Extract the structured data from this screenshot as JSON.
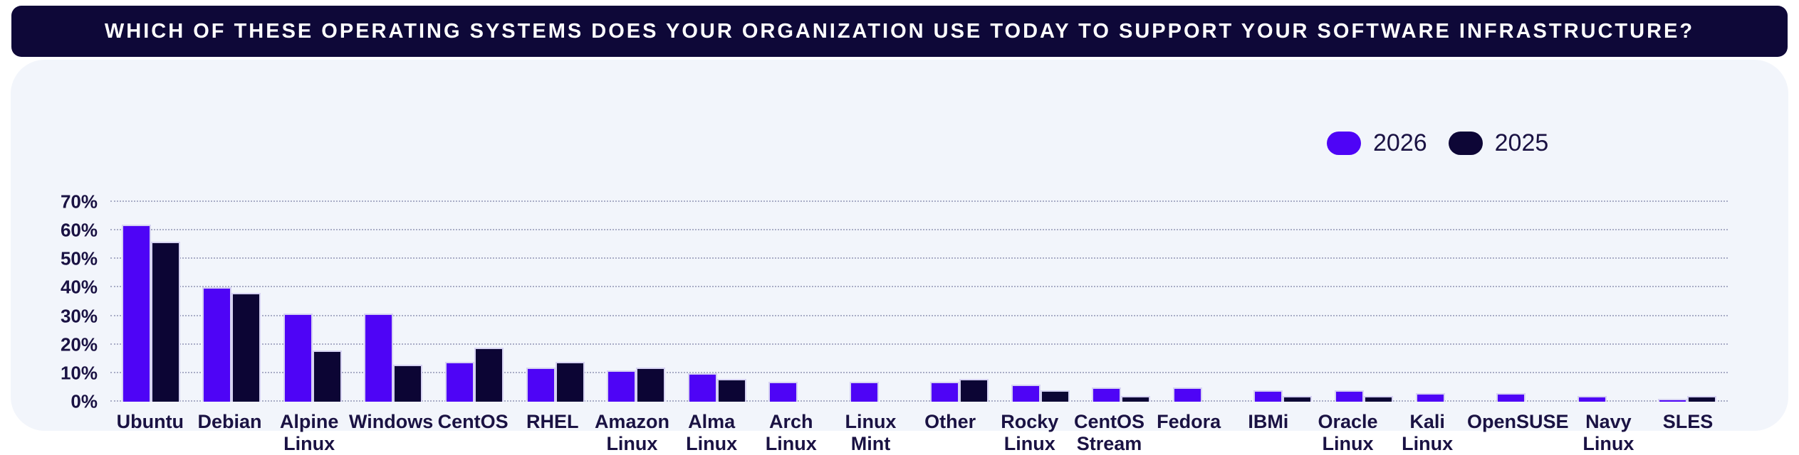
{
  "title": "WHICH OF THESE OPERATING SYSTEMS DOES YOUR ORGANIZATION USE TODAY TO SUPPORT YOUR SOFTWARE INFRASTRUCTURE?",
  "legend": [
    {
      "label": "2026",
      "color": "#4E04F6"
    },
    {
      "label": "2025",
      "color": "#0D0636"
    }
  ],
  "colors": {
    "banner_bg": "#0E0838",
    "card_bg": "#F2F5FB",
    "text": "#1A1243",
    "gridline": "#A9ADC6",
    "bar_outline": "#D6D2F2",
    "bar_2026": "#4E04F6",
    "bar_2025": "#0C0534"
  },
  "chart_data": {
    "type": "bar",
    "grouped": true,
    "title": "Which of these operating systems does your organization use today to support your software infrastructure?",
    "categories": [
      "Ubuntu",
      "Debian",
      "Alpine Linux",
      "Windows",
      "CentOS",
      "RHEL",
      "Amazon Linux",
      "Alma Linux",
      "Arch Linux",
      "Linux Mint",
      "Other",
      "Rocky Linux",
      "CentOS Stream",
      "Fedora",
      "IBMi",
      "Oracle Linux",
      "Kali Linux",
      "OpenSUSE",
      "Navy Linux",
      "SLES"
    ],
    "category_labels": [
      "Ubuntu",
      "Debian",
      "Alpine\nLinux",
      "Windows",
      "CentOS",
      "RHEL",
      "Amazon\nLinux",
      "Alma\nLinux",
      "Arch\nLinux",
      "Linux\nMint",
      "Other",
      "Rocky\nLinux",
      "CentOS\nStream",
      "Fedora",
      "IBMi",
      "Oracle\nLinux",
      "Kali\nLinux",
      "OpenSUSE",
      "Navy\nLinux",
      "SLES"
    ],
    "series": [
      {
        "name": "2026",
        "values": [
          62,
          40,
          31,
          31,
          14,
          12,
          11,
          10,
          7,
          7,
          7,
          6,
          5,
          5,
          4,
          4,
          3,
          3,
          2,
          1
        ]
      },
      {
        "name": "2025",
        "values": [
          56,
          38,
          18,
          13,
          19,
          14,
          12,
          8,
          0,
          0,
          8,
          4,
          2,
          0,
          2,
          2,
          0,
          0,
          0,
          2
        ]
      }
    ],
    "xlabel": "",
    "ylabel": "",
    "y_ticks": [
      "0%",
      "10%",
      "20%",
      "30%",
      "40%",
      "50%",
      "60%",
      "70%"
    ],
    "ylim": [
      0,
      70
    ],
    "grid": "horizontal-dotted",
    "legend_position": "top-right"
  }
}
